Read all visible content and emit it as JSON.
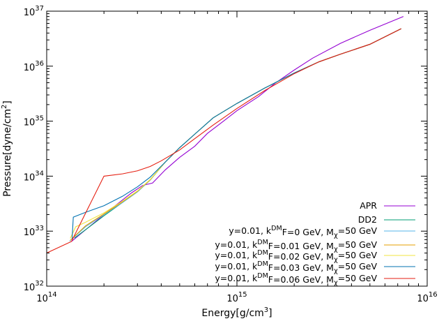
{
  "chart_data": {
    "type": "line",
    "xlabel": "Energy[g/cm^3]",
    "ylabel": "Pressure[dyne/cm^2]",
    "x_scale": "log",
    "y_scale": "log",
    "xlim": [
      100000000000000.0,
      1e+16
    ],
    "ylim": [
      1e+32,
      1e+37
    ],
    "x_ticks": [
      {
        "value": 100000000000000.0,
        "base": "10",
        "exp": "14"
      },
      {
        "value": 1000000000000000.0,
        "base": "10",
        "exp": "15"
      },
      {
        "value": 1e+16,
        "base": "10",
        "exp": "16"
      }
    ],
    "y_ticks": [
      {
        "value": 1e+32,
        "base": "10",
        "exp": "32"
      },
      {
        "value": 1e+33,
        "base": "10",
        "exp": "33"
      },
      {
        "value": 1e+34,
        "base": "10",
        "exp": "34"
      },
      {
        "value": 1e+35,
        "base": "10",
        "exp": "35"
      },
      {
        "value": 1e+36,
        "base": "10",
        "exp": "36"
      },
      {
        "value": 1e+37,
        "base": "10",
        "exp": "37"
      }
    ],
    "grid": false,
    "legend_position": "bottom-right",
    "series": [
      {
        "name": "APR",
        "color": "#9400d3",
        "points": [
          [
            135000000000000.0,
            6.5e+32
          ],
          [
            200000000000000.0,
            2e+33
          ],
          [
            280000000000000.0,
            5e+33
          ],
          [
            320000000000000.0,
            6.8e+33
          ],
          [
            360000000000000.0,
            7.5e+33
          ],
          [
            420000000000000.0,
            1.3e+34
          ],
          [
            500000000000000.0,
            2.2e+34
          ],
          [
            600000000000000.0,
            3.5e+34
          ],
          [
            700000000000000.0,
            6e+34
          ],
          [
            850000000000000.0,
            1e+35
          ],
          [
            1000000000000000.0,
            1.55e+35
          ],
          [
            1300000000000000.0,
            2.8e+35
          ],
          [
            1600000000000000.0,
            5e+35
          ],
          [
            2000000000000000.0,
            8.5e+35
          ],
          [
            2500000000000000.0,
            1.4e+36
          ],
          [
            3500000000000000.0,
            2.6e+36
          ],
          [
            5000000000000000.0,
            4.5e+36
          ],
          [
            7500000000000000.0,
            8e+36
          ]
        ]
      },
      {
        "name": "DD2",
        "color": "#009e73",
        "points": [
          [
            140000000000000.0,
            7.5e+32
          ],
          [
            200000000000000.0,
            1.9e+33
          ],
          [
            300000000000000.0,
            5.2e+33
          ],
          [
            350000000000000.0,
            8.5e+33
          ],
          [
            420000000000000.0,
            1.8e+34
          ],
          [
            500000000000000.0,
            3.3e+34
          ],
          [
            600000000000000.0,
            5.8e+34
          ],
          [
            750000000000000.0,
            1.15e+35
          ],
          [
            1000000000000000.0,
            2.1e+35
          ],
          [
            1400000000000000.0,
            4e+35
          ],
          [
            2000000000000000.0,
            7.5e+35
          ],
          [
            2700000000000000.0,
            1.2e+36
          ],
          [
            3500000000000000.0,
            1.65e+36
          ],
          [
            5000000000000000.0,
            2.5e+36
          ],
          [
            7300000000000000.0,
            4.8e+36
          ]
        ]
      },
      {
        "name": "y=0.01, k^DM_F=0 GeV, M_χ=50 GeV",
        "color": "#56b4e9",
        "points": [
          [
            132000000000000.0,
            6.6e+32
          ],
          [
            160000000000000.0,
            1.2e+33
          ],
          [
            200000000000000.0,
            2e+33
          ],
          [
            250000000000000.0,
            3.3e+33
          ],
          [
            300000000000000.0,
            5.2e+33
          ],
          [
            350000000000000.0,
            8.5e+33
          ],
          [
            420000000000000.0,
            1.8e+34
          ],
          [
            500000000000000.0,
            3.3e+34
          ],
          [
            600000000000000.0,
            5.8e+34
          ],
          [
            750000000000000.0,
            1.15e+35
          ],
          [
            1000000000000000.0,
            2.1e+35
          ],
          [
            1400000000000000.0,
            4e+35
          ],
          [
            2000000000000000.0,
            7.5e+35
          ],
          [
            2700000000000000.0,
            1.2e+36
          ],
          [
            3500000000000000.0,
            1.65e+36
          ],
          [
            5000000000000000.0,
            2.5e+36
          ],
          [
            7300000000000000.0,
            4.8e+36
          ]
        ]
      },
      {
        "name": "y=0.01, k^DM_F=0.01 GeV, M_χ=50 GeV",
        "color": "#e69f00",
        "points": [
          [
            133000000000000.0,
            6.8e+32
          ],
          [
            160000000000000.0,
            1.25e+33
          ],
          [
            200000000000000.0,
            2.05e+33
          ],
          [
            250000000000000.0,
            3.4e+33
          ],
          [
            300000000000000.0,
            5.3e+33
          ],
          [
            350000000000000.0,
            8.6e+33
          ],
          [
            420000000000000.0,
            1.8e+34
          ],
          [
            500000000000000.0,
            3.3e+34
          ],
          [
            600000000000000.0,
            5.8e+34
          ],
          [
            750000000000000.0,
            1.15e+35
          ],
          [
            1000000000000000.0,
            2.1e+35
          ],
          [
            1400000000000000.0,
            4e+35
          ],
          [
            2000000000000000.0,
            7.5e+35
          ],
          [
            2700000000000000.0,
            1.2e+36
          ],
          [
            3500000000000000.0,
            1.65e+36
          ],
          [
            5000000000000000.0,
            2.5e+36
          ],
          [
            7300000000000000.0,
            4.8e+36
          ]
        ]
      },
      {
        "name": "y=0.01, k^DM_F=0.02 GeV, M_χ=50 GeV",
        "color": "#f0e442",
        "points": [
          [
            133000000000000.0,
            7.4e+32
          ],
          [
            142000000000000.0,
            1.2e+33
          ],
          [
            160000000000000.0,
            1.45e+33
          ],
          [
            200000000000000.0,
            2.15e+33
          ],
          [
            250000000000000.0,
            3.5e+33
          ],
          [
            300000000000000.0,
            5.4e+33
          ],
          [
            350000000000000.0,
            8.7e+33
          ],
          [
            420000000000000.0,
            1.8e+34
          ],
          [
            500000000000000.0,
            3.3e+34
          ],
          [
            600000000000000.0,
            5.8e+34
          ],
          [
            750000000000000.0,
            1.15e+35
          ],
          [
            1000000000000000.0,
            2.1e+35
          ],
          [
            1400000000000000.0,
            4e+35
          ],
          [
            2000000000000000.0,
            7.5e+35
          ],
          [
            2700000000000000.0,
            1.2e+36
          ],
          [
            3500000000000000.0,
            1.65e+36
          ],
          [
            5000000000000000.0,
            2.5e+36
          ],
          [
            7300000000000000.0,
            4.8e+36
          ]
        ]
      },
      {
        "name": "y=0.01, k^DM_F=0.03 GeV, M_χ=50 GeV",
        "color": "#0072b2",
        "points": [
          [
            136000000000000.0,
            7.3e+32
          ],
          [
            138000000000000.0,
            1.8e+33
          ],
          [
            160000000000000.0,
            2.2e+33
          ],
          [
            200000000000000.0,
            2.9e+33
          ],
          [
            250000000000000.0,
            4.3e+33
          ],
          [
            300000000000000.0,
            6.4e+33
          ],
          [
            350000000000000.0,
            9.6e+33
          ],
          [
            420000000000000.0,
            1.8e+34
          ],
          [
            500000000000000.0,
            3.3e+34
          ],
          [
            600000000000000.0,
            5.8e+34
          ],
          [
            750000000000000.0,
            1.15e+35
          ],
          [
            1000000000000000.0,
            2.1e+35
          ],
          [
            1400000000000000.0,
            4e+35
          ],
          [
            2000000000000000.0,
            7.5e+35
          ],
          [
            2700000000000000.0,
            1.2e+36
          ],
          [
            3500000000000000.0,
            1.65e+36
          ],
          [
            5000000000000000.0,
            2.5e+36
          ],
          [
            7300000000000000.0,
            4.8e+36
          ]
        ]
      },
      {
        "name": "y=0.01, k^DM_F=0.06 GeV, M_χ=50 GeV",
        "color": "#e51e10",
        "points": [
          [
            100000000000000.0,
            4e+32
          ],
          [
            135000000000000.0,
            6.5e+32
          ],
          [
            200000000000000.0,
            1e+34
          ],
          [
            250000000000000.0,
            1.1e+34
          ],
          [
            300000000000000.0,
            1.25e+34
          ],
          [
            350000000000000.0,
            1.5e+34
          ],
          [
            400000000000000.0,
            1.9e+34
          ],
          [
            500000000000000.0,
            3e+34
          ],
          [
            600000000000000.0,
            4.8e+34
          ],
          [
            750000000000000.0,
            8.5e+34
          ],
          [
            1000000000000000.0,
            1.7e+35
          ],
          [
            1400000000000000.0,
            3.6e+35
          ],
          [
            2000000000000000.0,
            7.3e+35
          ],
          [
            2700000000000000.0,
            1.2e+36
          ],
          [
            3500000000000000.0,
            1.65e+36
          ],
          [
            5000000000000000.0,
            2.5e+36
          ],
          [
            7300000000000000.0,
            4.8e+36
          ]
        ]
      }
    ]
  },
  "labels": {
    "xlabel_main": "Energy[g/cm",
    "xlabel_sup": "3",
    "xlabel_end": "]",
    "ylabel_main": "Pressure[dyne/cm",
    "ylabel_sup": "2",
    "ylabel_end": "]"
  },
  "legend": [
    {
      "plain": "APR"
    },
    {
      "plain": "DD2"
    },
    {
      "pre": "y=0.01, k",
      "sup": "DM",
      "mid": "F=0 GeV, M",
      "sub": "χ",
      "post": "=50 GeV"
    },
    {
      "pre": "y=0.01, k",
      "sup": "DM",
      "mid": "F=0.01 GeV, M",
      "sub": "χ",
      "post": "=50 GeV"
    },
    {
      "pre": "y=0.01, k",
      "sup": "DM",
      "mid": "F=0.02 GeV, M",
      "sub": "χ",
      "post": "=50 GeV"
    },
    {
      "pre": "y=0.01, k",
      "sup": "DM",
      "mid": "F=0.03 GeV, M",
      "sub": "χ",
      "post": "=50 GeV"
    },
    {
      "pre": "y=0.01, k",
      "sup": "DM",
      "mid": "F=0.06 GeV, M",
      "sub": "χ",
      "post": "=50 GeV"
    }
  ]
}
